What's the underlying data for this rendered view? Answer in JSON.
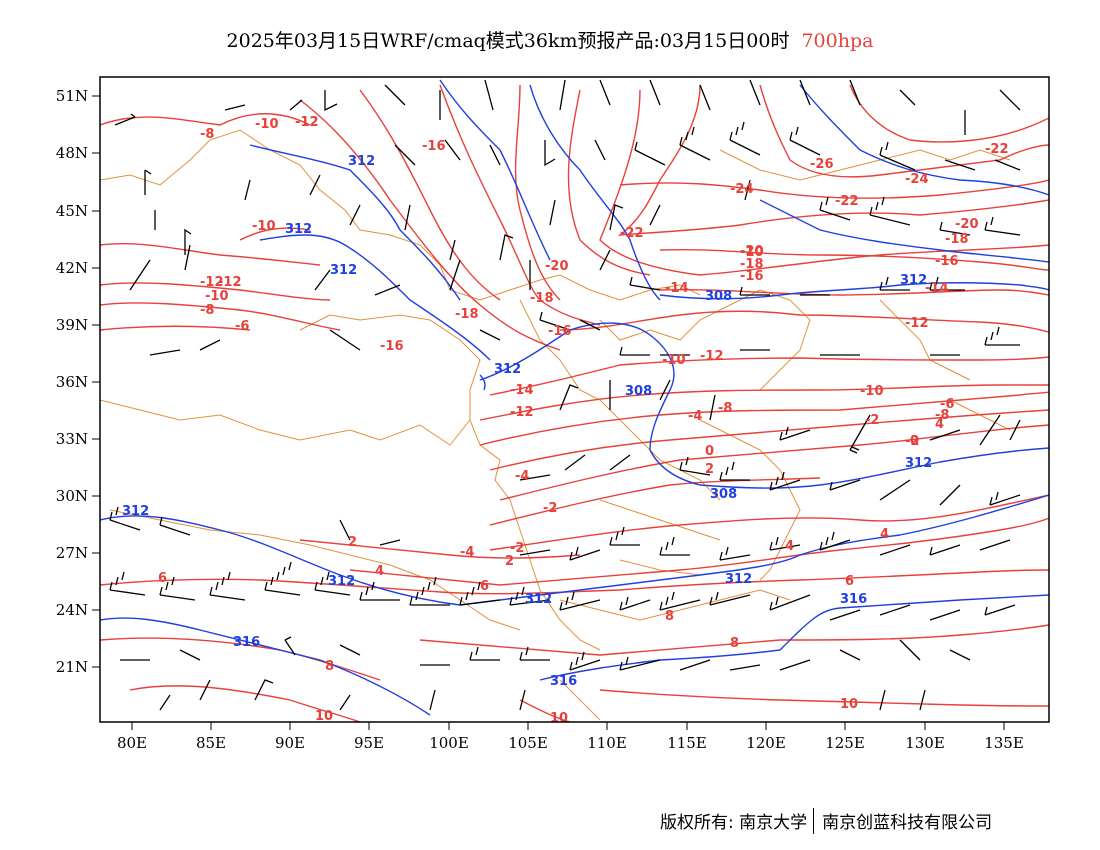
{
  "title": {
    "main": "2025年03月15日WRF/cmaq模式36km预报产品:03月15日00时",
    "level": "700hpa",
    "level_color": "#e8403a"
  },
  "colors": {
    "temperature_contour": "#e8403a",
    "height_contour": "#1f3fe0",
    "boundary": "#e0913a",
    "wind_barb": "#000000"
  },
  "axes": {
    "lon_labels": [
      "80E",
      "85E",
      "90E",
      "95E",
      "100E",
      "105E",
      "110E",
      "115E",
      "120E",
      "125E",
      "130E",
      "135E"
    ],
    "lat_labels": [
      "51N",
      "48N",
      "45N",
      "42N",
      "39N",
      "36N",
      "33N",
      "30N",
      "27N",
      "24N",
      "21N"
    ]
  },
  "temperature_labels": [
    "-8",
    "-10",
    "-12",
    "-16",
    "-10",
    "-12",
    "-12",
    "-10",
    "-8",
    "-6",
    "-16",
    "-18",
    "-20",
    "-22",
    "-24",
    "-26",
    "-22",
    "-24",
    "-22",
    "-20",
    "-18",
    "-16",
    "-14",
    "-14",
    "-12",
    "-10",
    "-18",
    "-16",
    "-20",
    "-18",
    "-16",
    "-12",
    "-14",
    "-12",
    "-10",
    "-8",
    "-4",
    "-4",
    "-2",
    "-10",
    "-6",
    "-8",
    "-2",
    "0",
    "2",
    "4",
    "-2",
    "0",
    "2",
    "-4",
    "-2",
    "2",
    "4",
    "4",
    "4",
    "6",
    "6",
    "6",
    "8",
    "8",
    "8",
    "10",
    "10",
    "10"
  ],
  "height_labels": [
    "312",
    "312",
    "312",
    "312",
    "312",
    "308",
    "308",
    "308",
    "312",
    "312",
    "312",
    "312",
    "316",
    "316",
    "316",
    "312"
  ],
  "copyright": {
    "owner": "版权所有: 南京大学",
    "company": "南京创蓝科技有限公司"
  }
}
